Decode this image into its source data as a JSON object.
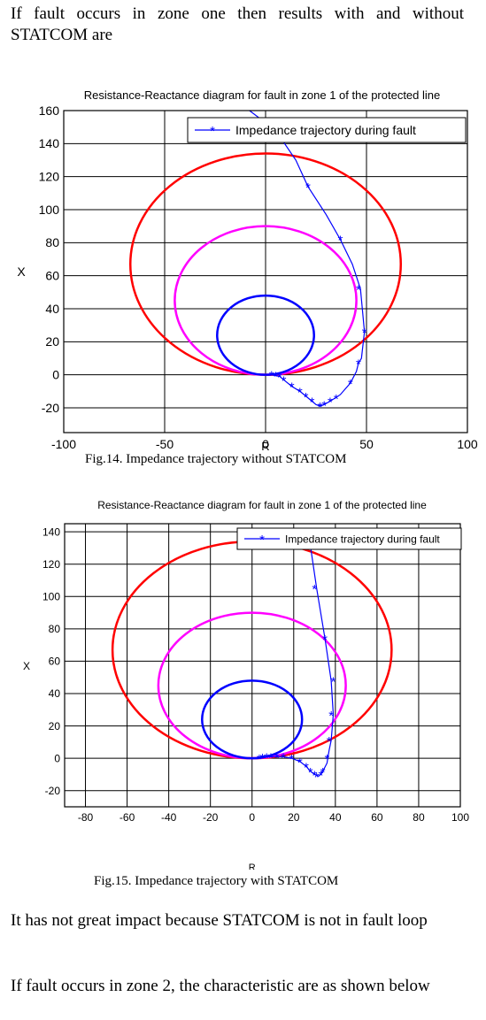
{
  "paragraphs": {
    "intro": "If fault occurs in zone one then results with and without STATCOM are",
    "impact": "It has not great impact because STATCOM is not in fault loop",
    "zone2": "If fault occurs in zone 2, the characteristic are as shown below"
  },
  "figures": [
    {
      "caption": "Fig.14. Impedance trajectory without STATCOM",
      "chart_data": {
        "type": "line",
        "title": "Resistance-Reactance diagram for fault in zone 1 of the protected line",
        "xlabel": "R",
        "ylabel": "X",
        "xlim": [
          -100,
          100
        ],
        "ylim": [
          -35,
          160
        ],
        "xticks": [
          -100,
          -50,
          0,
          50,
          100
        ],
        "yticks": [
          -20,
          0,
          20,
          40,
          60,
          80,
          100,
          120,
          140,
          160
        ],
        "grid": true,
        "legend": "top-right",
        "series": [
          {
            "name": "Impedance trajectory during fault",
            "color": "#0000ff",
            "marker": "*",
            "x": [
              -8,
              5,
              15,
              21,
              30,
              37,
              43,
              47,
              49,
              47.5,
              46,
              45,
              42,
              37,
              32,
              29,
              27,
              25,
              23,
              20,
              17,
              13,
              9,
              7,
              5,
              3,
              1.5
            ],
            "y": [
              160,
              148,
              130,
              114,
              97,
              82,
              67,
              52,
              26,
              10,
              7,
              2,
              -5,
              -12,
              -16,
              -18,
              -19,
              -18,
              -16,
              -13,
              -10,
              -7,
              -3,
              -1,
              -0.5,
              0,
              0
            ],
            "markers_x": [
              21,
              37,
              46,
              49,
              46,
              42,
              35,
              32,
              29,
              27,
              23,
              20,
              17,
              13,
              9,
              7,
              5,
              3
            ],
            "markers_y": [
              114,
              82,
              52,
              26,
              7,
              -5,
              -14,
              -16,
              -18,
              -19,
              -16,
              -13,
              -10,
              -7,
              -3,
              -1,
              -0.5,
              0
            ]
          },
          {
            "color": "#ff0000",
            "shape": "circle",
            "cx": 0,
            "cy": 67,
            "r": 67
          },
          {
            "color": "#ff00ff",
            "shape": "circle",
            "cx": 0,
            "cy": 45,
            "r": 45
          },
          {
            "color": "#0000ff",
            "shape": "circle",
            "cx": 0,
            "cy": 24,
            "r": 24
          }
        ]
      }
    },
    {
      "caption": "Fig.15. Impedance trajectory with STATCOM",
      "chart_data": {
        "type": "line",
        "title": "Resistance-Reactance diagram for fault in zone 1 of the protected line",
        "xlabel": "R",
        "ylabel": "X",
        "xlim": [
          -90,
          100
        ],
        "ylim": [
          -30,
          145
        ],
        "xticks": [
          -80,
          -60,
          -40,
          -20,
          0,
          20,
          40,
          60,
          80,
          100
        ],
        "yticks": [
          -20,
          0,
          20,
          40,
          60,
          80,
          100,
          120,
          140
        ],
        "grid": true,
        "legend": "top-right",
        "series": [
          {
            "name": "Impedance trajectory during fault",
            "color": "#0000ff",
            "marker": "*",
            "x": [
              27,
              31,
              35,
              38,
              39,
              38,
              37,
              36,
              34,
              33,
              32,
              30,
              28,
              26,
              23,
              19,
              15,
              12,
              9,
              7,
              5,
              3.5
            ],
            "y": [
              140,
              105,
              74,
              48,
              27,
              11,
              5,
              -3,
              -8,
              -10,
              -11,
              -10,
              -8,
              -5,
              -2,
              0,
              1,
              1,
              1,
              1,
              0.5,
              0
            ],
            "markers_x": [
              30,
              35,
              39,
              38,
              37,
              36,
              34,
              33,
              31,
              30,
              28,
              26,
              23,
              19,
              15,
              12,
              9,
              7,
              5,
              3.5
            ],
            "markers_y": [
              105,
              74,
              48,
              27,
              11,
              0,
              -8,
              -10,
              -11,
              -10,
              -8,
              -5,
              -2,
              0,
              1,
              1,
              1,
              1,
              0.5,
              0
            ]
          },
          {
            "color": "#ff0000",
            "shape": "circle",
            "cx": 0,
            "cy": 67,
            "r": 67
          },
          {
            "color": "#ff00ff",
            "shape": "circle",
            "cx": 0,
            "cy": 45,
            "r": 45
          },
          {
            "color": "#0000ff",
            "shape": "circle",
            "cx": 0,
            "cy": 24,
            "r": 24
          }
        ]
      }
    }
  ]
}
